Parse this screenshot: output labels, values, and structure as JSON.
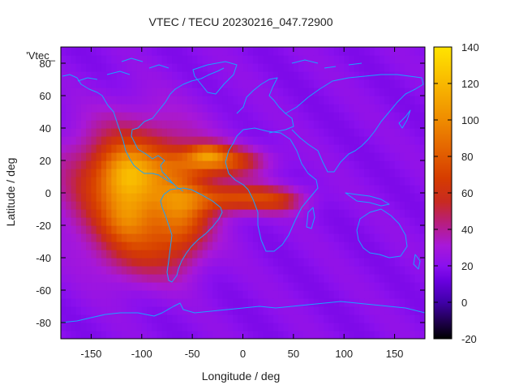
{
  "chart_data": {
    "type": "heatmap",
    "title": "VTEC / TECU 20230216_047.72900",
    "xlabel": "Longitude / deg",
    "ylabel": "Latitude / deg",
    "key_label": "'Vtec_",
    "xlim": [
      -180,
      180
    ],
    "ylim": [
      -90,
      90
    ],
    "x_ticks": [
      -150,
      -100,
      -50,
      0,
      50,
      100,
      150
    ],
    "y_ticks": [
      -80,
      -60,
      -40,
      -20,
      0,
      20,
      40,
      60,
      80
    ],
    "colorbar": {
      "range": [
        -20,
        140
      ],
      "ticks": [
        -20,
        0,
        20,
        40,
        60,
        80,
        100,
        120,
        140
      ],
      "palette": "gnuplot pm3d (black-purple-red-orange-yellow)"
    },
    "grid": {
      "lon_step": 5,
      "lat_step": 5,
      "background_value": 20,
      "regions": [
        {
          "name": "pacific-american-crest",
          "lon": -105,
          "lat": 5,
          "sx": 45,
          "sy": 25,
          "value": 68
        },
        {
          "name": "pacific-peak-north",
          "lon": -115,
          "lat": 12,
          "sx": 18,
          "sy": 12,
          "value": 38
        },
        {
          "name": "pacific-peak-south",
          "lon": -115,
          "lat": -15,
          "sx": 15,
          "sy": 10,
          "value": 22
        },
        {
          "name": "south-pacific-extension",
          "lon": -100,
          "lat": -35,
          "sx": 30,
          "sy": 15,
          "value": 25
        },
        {
          "name": "atlantic-north-band",
          "lon": -25,
          "lat": 20,
          "sx": 30,
          "sy": 6,
          "value": 55
        },
        {
          "name": "atlantic-north-peak",
          "lon": -35,
          "lat": 25,
          "sx": 12,
          "sy": 4,
          "value": 30
        },
        {
          "name": "atlantic-south-band",
          "lon": -5,
          "lat": -3,
          "sx": 35,
          "sy": 6,
          "value": 48
        },
        {
          "name": "africa-tongue",
          "lon": 35,
          "lat": -5,
          "sx": 18,
          "sy": 5,
          "value": 20
        },
        {
          "name": "south-america-band",
          "lon": -60,
          "lat": -15,
          "sx": 18,
          "sy": 18,
          "value": 35
        }
      ]
    }
  }
}
